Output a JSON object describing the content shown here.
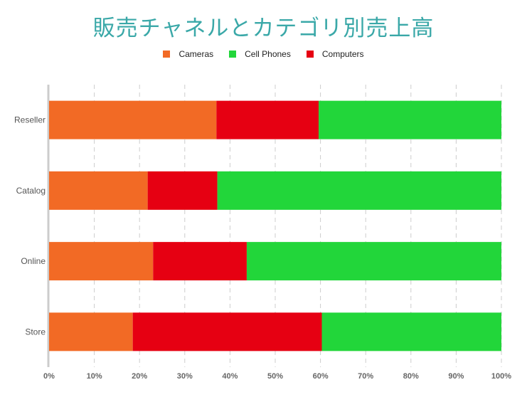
{
  "chart_data": {
    "type": "bar",
    "orientation": "horizontal",
    "stacked": "percent",
    "title": "販売チャネルとカテゴリ別売上高",
    "categories": [
      "Reseller",
      "Catalog",
      "Online",
      "Store"
    ],
    "series": [
      {
        "name": "Cameras",
        "color": "#f26a25",
        "values": [
          37.0,
          21.8,
          23.0,
          18.5
        ]
      },
      {
        "name": "Computers",
        "color": "#e60012",
        "values": [
          22.6,
          15.4,
          20.7,
          41.8
        ]
      },
      {
        "name": "Cell Phones",
        "color": "#22d63a",
        "values": [
          40.4,
          62.8,
          56.3,
          39.7
        ]
      }
    ],
    "legend_order": [
      "Cameras",
      "Cell Phones",
      "Computers"
    ],
    "xlim": [
      0,
      100
    ],
    "x_ticks": [
      "0%",
      "10%",
      "20%",
      "30%",
      "40%",
      "50%",
      "60%",
      "70%",
      "80%",
      "90%",
      "100%"
    ],
    "grid": "vertical dashed",
    "legend_position": "top"
  }
}
